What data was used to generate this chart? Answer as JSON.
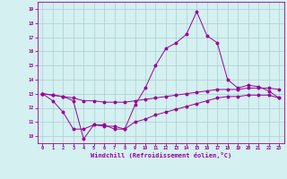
{
  "xlabel": "Windchill (Refroidissement éolien,°C)",
  "background_color": "#d4f0f0",
  "line_color": "#990099",
  "grid_color": "#aacece",
  "xlim": [
    -0.5,
    23.5
  ],
  "ylim": [
    9.5,
    19.5
  ],
  "xticks": [
    0,
    1,
    2,
    3,
    4,
    5,
    6,
    7,
    8,
    9,
    10,
    11,
    12,
    13,
    14,
    15,
    16,
    17,
    18,
    19,
    20,
    21,
    22,
    23
  ],
  "yticks": [
    10,
    11,
    12,
    13,
    14,
    15,
    16,
    17,
    18,
    19
  ],
  "line1_x": [
    0,
    1,
    2,
    3,
    4,
    5,
    6,
    7,
    8,
    9,
    10,
    11,
    12,
    13,
    14,
    15,
    16,
    17,
    18,
    19,
    20,
    21,
    22,
    23
  ],
  "line1_y": [
    13.0,
    12.5,
    11.7,
    10.5,
    10.5,
    10.8,
    10.7,
    10.7,
    10.5,
    12.2,
    13.4,
    15.0,
    16.2,
    16.6,
    17.2,
    18.8,
    17.1,
    16.6,
    14.0,
    13.4,
    13.6,
    13.5,
    13.2,
    12.7
  ],
  "line2_x": [
    0,
    1,
    2,
    3,
    4,
    5,
    6,
    7,
    8,
    9,
    10,
    11,
    12,
    13,
    14,
    15,
    16,
    17,
    18,
    19,
    20,
    21,
    22,
    23
  ],
  "line2_y": [
    13.0,
    12.9,
    12.8,
    12.7,
    12.5,
    12.5,
    12.4,
    12.4,
    12.4,
    12.5,
    12.6,
    12.7,
    12.8,
    12.9,
    13.0,
    13.1,
    13.2,
    13.3,
    13.3,
    13.3,
    13.4,
    13.4,
    13.4,
    13.3
  ],
  "line3_x": [
    0,
    1,
    2,
    3,
    4,
    5,
    6,
    7,
    8,
    9,
    10,
    11,
    12,
    13,
    14,
    15,
    16,
    17,
    18,
    19,
    20,
    21,
    22,
    23
  ],
  "line3_y": [
    13.0,
    12.9,
    12.8,
    12.5,
    9.8,
    10.8,
    10.8,
    10.5,
    10.5,
    11.0,
    11.2,
    11.5,
    11.7,
    11.9,
    12.1,
    12.3,
    12.5,
    12.7,
    12.8,
    12.8,
    12.9,
    12.9,
    12.9,
    12.7
  ]
}
